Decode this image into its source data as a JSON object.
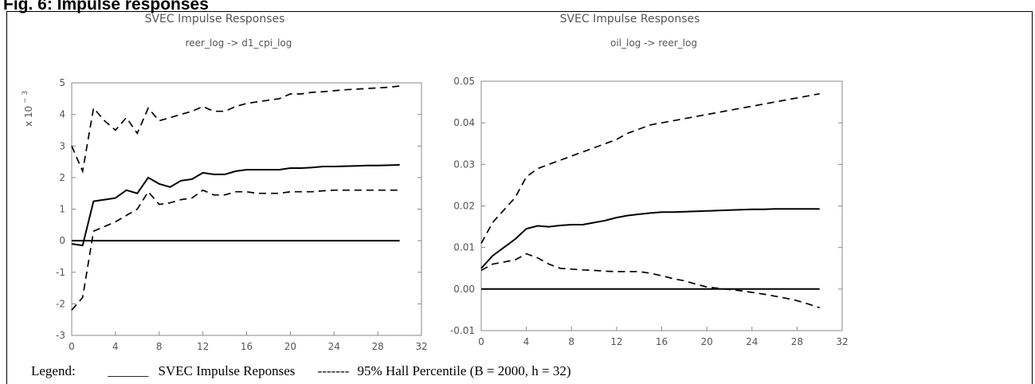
{
  "figure_title": "Fig. 6: Impulse responses",
  "legend": {
    "label": "Legend:",
    "solid_marker": "______",
    "solid_text": "SVEC Impulse Reponses",
    "dashed_marker": "-------",
    "dashed_text": "95% Hall Percentile (B = 2000, h = 32)"
  },
  "chart_data": [
    {
      "type": "line",
      "title": "SVEC Impulse Responses",
      "subtitle": "reer_log -> d1_cpi_log",
      "y_multiplier_label": "x 10^-3",
      "xlim": [
        0,
        32
      ],
      "ylim": [
        -3,
        5
      ],
      "x_ticks": [
        "0",
        "4",
        "8",
        "12",
        "16",
        "20",
        "24",
        "28",
        "32"
      ],
      "y_ticks": [
        "-3",
        "-2",
        "-1",
        "0",
        "1",
        "2",
        "3",
        "4",
        "5"
      ],
      "x": [
        0,
        1,
        2,
        3,
        4,
        5,
        6,
        7,
        8,
        9,
        10,
        11,
        12,
        13,
        14,
        15,
        16,
        17,
        18,
        19,
        20,
        21,
        22,
        23,
        24,
        25,
        26,
        27,
        28,
        29,
        30
      ],
      "series": [
        {
          "style": "solid",
          "values": [
            -0.1,
            -0.15,
            1.25,
            1.3,
            1.35,
            1.6,
            1.5,
            2.0,
            1.8,
            1.7,
            1.9,
            1.95,
            2.15,
            2.1,
            2.1,
            2.2,
            2.25,
            2.25,
            2.25,
            2.25,
            2.3,
            2.3,
            2.32,
            2.35,
            2.35,
            2.36,
            2.37,
            2.38,
            2.38,
            2.39,
            2.4
          ]
        },
        {
          "style": "dashed",
          "values": [
            3.0,
            2.2,
            4.2,
            3.8,
            3.5,
            3.9,
            3.4,
            4.2,
            3.8,
            3.9,
            4.0,
            4.1,
            4.25,
            4.1,
            4.1,
            4.25,
            4.35,
            4.4,
            4.45,
            4.5,
            4.65,
            4.65,
            4.7,
            4.72,
            4.75,
            4.78,
            4.8,
            4.82,
            4.84,
            4.86,
            4.9
          ]
        },
        {
          "style": "dashed",
          "values": [
            -2.2,
            -1.8,
            0.3,
            0.45,
            0.6,
            0.8,
            1.0,
            1.55,
            1.15,
            1.2,
            1.3,
            1.35,
            1.6,
            1.45,
            1.45,
            1.55,
            1.55,
            1.5,
            1.5,
            1.5,
            1.55,
            1.55,
            1.55,
            1.58,
            1.6,
            1.6,
            1.6,
            1.6,
            1.6,
            1.6,
            1.6
          ]
        },
        {
          "style": "solid",
          "values": [
            0,
            0,
            0,
            0,
            0,
            0,
            0,
            0,
            0,
            0,
            0,
            0,
            0,
            0,
            0,
            0,
            0,
            0,
            0,
            0,
            0,
            0,
            0,
            0,
            0,
            0,
            0,
            0,
            0,
            0,
            0
          ]
        }
      ]
    },
    {
      "type": "line",
      "title": "SVEC Impulse Responses",
      "subtitle": "oil_log -> reer_log",
      "xlim": [
        0,
        32
      ],
      "ylim": [
        -0.01,
        0.05
      ],
      "x_ticks": [
        "0",
        "4",
        "8",
        "12",
        "16",
        "20",
        "24",
        "28",
        "32"
      ],
      "y_ticks": [
        "-0.01",
        "0.00",
        "0.01",
        "0.02",
        "0.03",
        "0.04",
        "0.05"
      ],
      "x": [
        0,
        1,
        2,
        3,
        4,
        5,
        6,
        7,
        8,
        9,
        10,
        11,
        12,
        13,
        14,
        15,
        16,
        17,
        18,
        19,
        20,
        21,
        22,
        23,
        24,
        25,
        26,
        27,
        28,
        29,
        30
      ],
      "series": [
        {
          "style": "solid",
          "values": [
            0.005,
            0.008,
            0.01,
            0.012,
            0.0145,
            0.0152,
            0.015,
            0.0153,
            0.0155,
            0.0155,
            0.016,
            0.0165,
            0.0172,
            0.0177,
            0.018,
            0.0183,
            0.0185,
            0.0185,
            0.0186,
            0.0187,
            0.0188,
            0.0189,
            0.019,
            0.0191,
            0.0192,
            0.0192,
            0.0193,
            0.0193,
            0.0193,
            0.0193,
            0.0193
          ]
        },
        {
          "style": "dashed",
          "values": [
            0.011,
            0.016,
            0.019,
            0.022,
            0.027,
            0.029,
            0.03,
            0.031,
            0.032,
            0.033,
            0.034,
            0.035,
            0.036,
            0.0375,
            0.0385,
            0.0395,
            0.04,
            0.0405,
            0.041,
            0.0415,
            0.042,
            0.0425,
            0.043,
            0.0435,
            0.044,
            0.0445,
            0.045,
            0.0455,
            0.046,
            0.0465,
            0.047
          ]
        },
        {
          "style": "dashed",
          "values": [
            0.0045,
            0.006,
            0.0065,
            0.007,
            0.0085,
            0.0075,
            0.006,
            0.005,
            0.0048,
            0.0046,
            0.0045,
            0.0043,
            0.0042,
            0.0042,
            0.0042,
            0.0038,
            0.0032,
            0.0025,
            0.002,
            0.0012,
            0.0005,
            0.0002,
            -0.0001,
            -0.0004,
            -0.0008,
            -0.0012,
            -0.0017,
            -0.0022,
            -0.0028,
            -0.0036,
            -0.0045
          ]
        },
        {
          "style": "solid",
          "values": [
            0,
            0,
            0,
            0,
            0,
            0,
            0,
            0,
            0,
            0,
            0,
            0,
            0,
            0,
            0,
            0,
            0,
            0,
            0,
            0,
            0,
            0,
            0,
            0,
            0,
            0,
            0,
            0,
            0,
            0,
            0
          ]
        }
      ]
    }
  ]
}
